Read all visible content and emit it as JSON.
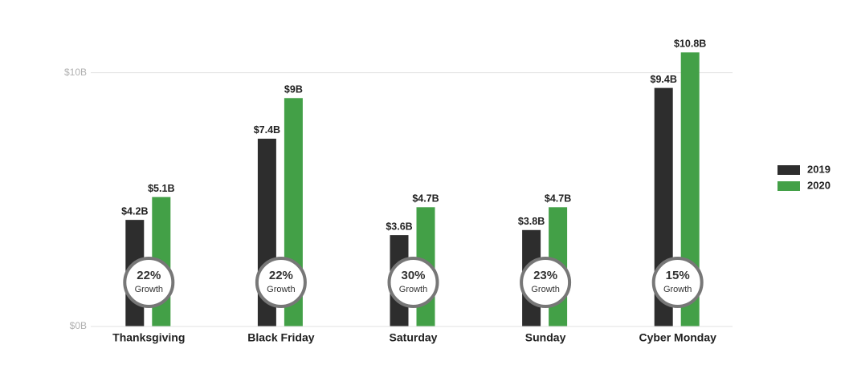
{
  "chart_data": {
    "type": "bar",
    "categories": [
      "Thanksgiving",
      "Black Friday",
      "Saturday",
      "Sunday",
      "Cyber Monday"
    ],
    "series": [
      {
        "name": "2019",
        "color": "#2d2d2d",
        "values": [
          4.2,
          7.4,
          3.6,
          3.8,
          9.4
        ],
        "value_labels": [
          "$4.2B",
          "$7.4B",
          "$3.6B",
          "$3.8B",
          "$9.4B"
        ]
      },
      {
        "name": "2020",
        "color": "#43a047",
        "values": [
          5.1,
          9,
          4.7,
          4.7,
          10.8
        ],
        "value_labels": [
          "$5.1B",
          "$9B",
          "$4.7B",
          "$4.7B",
          "$10.8B"
        ]
      }
    ],
    "growth": {
      "values": [
        22,
        22,
        30,
        23,
        15
      ],
      "value_labels": [
        "22%",
        "22%",
        "30%",
        "23%",
        "15%"
      ],
      "label": "Growth"
    },
    "ylim": [
      0,
      11
    ],
    "yticks": [
      {
        "value": 0,
        "label": "$0B"
      },
      {
        "value": 10,
        "label": "$10B"
      }
    ],
    "grid": true,
    "legend": "right"
  }
}
